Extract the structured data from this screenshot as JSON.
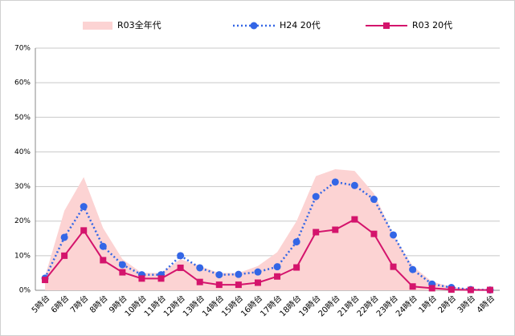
{
  "chart_data": {
    "type": "line",
    "categories": [
      "5時台",
      "6時台",
      "7時台",
      "8時台",
      "9時台",
      "10時台",
      "11時台",
      "12時台",
      "13時台",
      "14時台",
      "15時台",
      "16時台",
      "17時台",
      "18時台",
      "19時台",
      "20時台",
      "21時台",
      "22時台",
      "23時台",
      "24時台",
      "1時台",
      "2時台",
      "3時台",
      "4時台"
    ],
    "series": [
      {
        "name": "R03全年代",
        "kind": "area",
        "color": "#fcd3d3",
        "values": [
          4,
          23,
          32.7,
          18,
          9,
          5,
          5,
          9,
          7,
          5,
          5,
          7,
          11,
          20,
          33,
          35,
          34.5,
          28,
          16,
          7,
          2.5,
          1,
          0.5,
          0.3
        ]
      },
      {
        "name": "H24 20代",
        "kind": "line",
        "dash": true,
        "marker": "circle",
        "color": "#3366e6",
        "values": [
          3.5,
          15.3,
          24.2,
          12.7,
          7.4,
          4.5,
          4.5,
          10,
          6.5,
          4.5,
          4.6,
          5.3,
          6.8,
          14,
          27.1,
          31.3,
          30.3,
          26.3,
          16,
          6,
          1.8,
          0.8,
          0.2,
          0.1
        ]
      },
      {
        "name": "R03 20代",
        "kind": "line",
        "dash": false,
        "marker": "square",
        "color": "#d4146c",
        "values": [
          3,
          10,
          17.3,
          8.7,
          5.2,
          3.4,
          3.4,
          6.5,
          2.4,
          1.6,
          1.6,
          2.2,
          4,
          6.6,
          16.8,
          17.5,
          20.5,
          16.3,
          6.8,
          1.1,
          0.6,
          0.2,
          0.1,
          0.1
        ]
      }
    ],
    "ylim": [
      0,
      70
    ],
    "yticks": [
      {
        "value": 0,
        "label": "0%"
      },
      {
        "value": 10,
        "label": "10%"
      },
      {
        "value": 20,
        "label": "20%"
      },
      {
        "value": 30,
        "label": "30%"
      },
      {
        "value": 40,
        "label": "40%"
      },
      {
        "value": 50,
        "label": "50%"
      },
      {
        "value": 60,
        "label": "60%"
      },
      {
        "value": 70,
        "label": "70%"
      }
    ],
    "grid": true,
    "legend": "top"
  }
}
